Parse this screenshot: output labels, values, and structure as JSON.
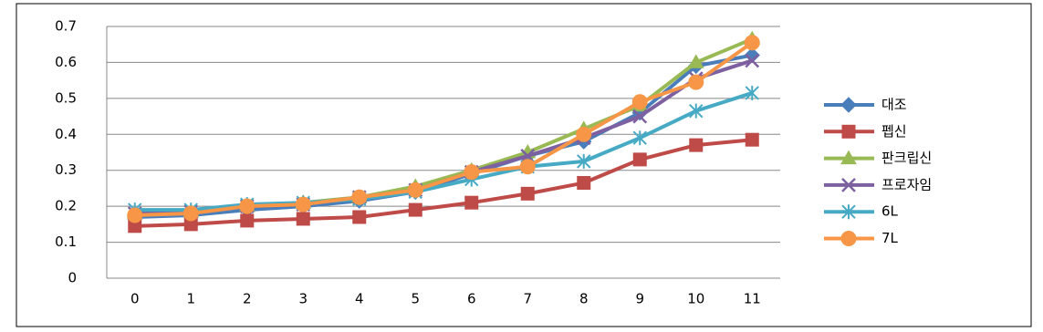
{
  "chart_data": {
    "type": "line",
    "categories": [
      "0",
      "1",
      "2",
      "3",
      "4",
      "5",
      "6",
      "7",
      "8",
      "9",
      "10",
      "11"
    ],
    "series": [
      {
        "name": "대조",
        "color": "#4a7ebb",
        "marker": "diamond",
        "values": [
          0.17,
          0.175,
          0.19,
          0.2,
          0.215,
          0.24,
          0.29,
          0.34,
          0.38,
          0.46,
          0.59,
          0.62
        ]
      },
      {
        "name": "펩신",
        "color": "#be4b48",
        "marker": "square",
        "values": [
          0.145,
          0.15,
          0.16,
          0.165,
          0.17,
          0.19,
          0.21,
          0.235,
          0.265,
          0.33,
          0.37,
          0.385
        ]
      },
      {
        "name": "판크립신",
        "color": "#98b954",
        "marker": "triangle",
        "values": [
          0.18,
          0.185,
          0.2,
          0.21,
          0.225,
          0.255,
          0.3,
          0.35,
          0.415,
          0.48,
          0.6,
          0.665
        ]
      },
      {
        "name": "프로자임",
        "color": "#7d60a0",
        "marker": "x",
        "values": [
          0.18,
          0.185,
          0.2,
          0.205,
          0.225,
          0.245,
          0.295,
          0.34,
          0.39,
          0.45,
          0.555,
          0.605
        ]
      },
      {
        "name": "6L",
        "color": "#46aac5",
        "marker": "star",
        "values": [
          0.19,
          0.19,
          0.205,
          0.21,
          0.22,
          0.24,
          0.275,
          0.31,
          0.325,
          0.39,
          0.465,
          0.515
        ]
      },
      {
        "name": "7L",
        "color": "#f79646",
        "marker": "circle",
        "values": [
          0.175,
          0.18,
          0.2,
          0.205,
          0.225,
          0.245,
          0.295,
          0.31,
          0.4,
          0.49,
          0.545,
          0.655
        ]
      }
    ],
    "ylim": [
      0,
      0.7
    ],
    "yticks": [
      0,
      0.1,
      0.2,
      0.3,
      0.4,
      0.5,
      0.6,
      0.7
    ],
    "grid": true,
    "legend": "right"
  }
}
